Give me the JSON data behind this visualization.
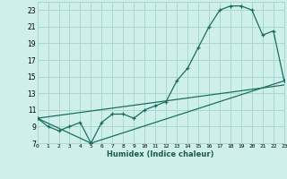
{
  "xlabel": "Humidex (Indice chaleur)",
  "bg_color": "#cff0ea",
  "grid_color": "#a8d8d0",
  "line_color": "#1a6e60",
  "line1_x": [
    0,
    1,
    2,
    3,
    4,
    5,
    6,
    7,
    8,
    9,
    10,
    11,
    12,
    13,
    14,
    15,
    16,
    17,
    18,
    19,
    20,
    21,
    22,
    23
  ],
  "line1_y": [
    10,
    9,
    8.5,
    9,
    9.5,
    7,
    9.5,
    10.5,
    10.5,
    10,
    11,
    11.5,
    12,
    14.5,
    16,
    18.5,
    21,
    23,
    23.5,
    23.5,
    23,
    20,
    20.5,
    14.5
  ],
  "line2_x": [
    0,
    5,
    23
  ],
  "line2_y": [
    10,
    7,
    14.5
  ],
  "line3_x": [
    0,
    23
  ],
  "line3_y": [
    10,
    14
  ],
  "xlim": [
    0,
    23
  ],
  "ylim": [
    7,
    24
  ],
  "xticks": [
    0,
    1,
    2,
    3,
    4,
    5,
    6,
    7,
    8,
    9,
    10,
    11,
    12,
    13,
    14,
    15,
    16,
    17,
    18,
    19,
    20,
    21,
    22,
    23
  ],
  "yticks": [
    7,
    9,
    11,
    13,
    15,
    17,
    19,
    21,
    23
  ],
  "xlabel_fontsize": 6.0,
  "xtick_fontsize": 4.5,
  "ytick_fontsize": 5.5
}
